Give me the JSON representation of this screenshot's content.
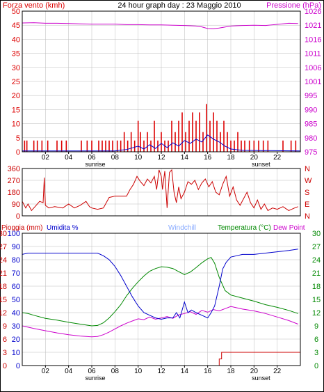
{
  "header": {
    "left_label": "Forza vento (kmh)",
    "title": "24 hour graph day : 23 Maggio 2010",
    "right_label": "Pressione (hPa)"
  },
  "colors": {
    "wind": "#dd0000",
    "gust": "#dd0000",
    "avg_wind": "#0000cc",
    "pressure": "#cc00cc",
    "direction": "#cc0000",
    "rain": "#cc0000",
    "humidity": "#0000cc",
    "windchill": "#88aaff",
    "temperature": "#008800",
    "dewpoint": "#cc00cc",
    "frame": "#000000",
    "grid": "#bbbbbb"
  },
  "x_axis": {
    "tick_labels": [
      "02",
      "04",
      "06",
      "08",
      "10",
      "12",
      "14",
      "16",
      "18",
      "20",
      "22"
    ],
    "tick_hours": [
      2,
      4,
      6,
      8,
      10,
      12,
      14,
      16,
      18,
      20,
      22
    ],
    "sunrise_label": "sunrise",
    "sunset_label": "sunset",
    "sunrise_hour": 6.3,
    "sunset_hour": 20.6
  },
  "chart_data": [
    {
      "type": "line",
      "name_key": "wind_pressure",
      "title": "24 hour graph day : 23 Maggio 2010",
      "ylabel_left": "Forza vento (kmh)",
      "ylabel_right": "Pressione (hPa)",
      "ylim_left": [
        0,
        50
      ],
      "ylim_right": [
        975,
        1026
      ],
      "yticks_left": [
        "0",
        "5",
        "10",
        "15",
        "20",
        "25",
        "30",
        "35",
        "40",
        "45",
        "50"
      ],
      "yticks_right": [
        "975",
        "980",
        "985",
        "990",
        "995",
        "1001",
        "1006",
        "1011",
        "1016",
        "1021",
        "1026"
      ],
      "grid": true,
      "series": [
        {
          "key": "gust",
          "style": "bars",
          "x": [
            0.2,
            0.4,
            1.0,
            1.3,
            1.7,
            2.2,
            3.0,
            3.4,
            3.8,
            5.1,
            5.6,
            6.0,
            6.6,
            6.9,
            7.2,
            7.5,
            7.8,
            8.2,
            8.5,
            8.8,
            9.1,
            9.4,
            9.7,
            10.0,
            10.2,
            10.5,
            10.8,
            11.1,
            11.4,
            11.7,
            12.0,
            12.3,
            12.6,
            12.9,
            13.2,
            13.5,
            13.8,
            14.1,
            14.4,
            14.7,
            15.0,
            15.3,
            15.6,
            15.9,
            16.2,
            16.5,
            16.8,
            17.1,
            17.4,
            17.7,
            18.0,
            18.3,
            18.6,
            18.9,
            19.2,
            19.6,
            20.0,
            20.4,
            20.8,
            21.2,
            22.5,
            23.2,
            23.6
          ],
          "values": [
            4,
            4,
            4,
            4,
            4,
            4,
            4,
            4,
            4,
            4,
            4,
            4,
            4,
            4,
            4,
            4,
            4,
            4,
            4,
            7,
            4,
            7,
            4,
            11,
            7,
            4,
            7,
            4,
            11,
            4,
            7,
            4,
            4,
            11,
            7,
            11,
            14,
            7,
            11,
            14,
            11,
            14,
            7,
            17,
            11,
            14,
            11,
            7,
            11,
            7,
            4,
            4,
            7,
            4,
            4,
            4,
            4,
            4,
            4,
            4,
            4,
            4,
            4
          ]
        },
        {
          "key": "avg_wind",
          "style": "line",
          "x": [
            0,
            8,
            9,
            10,
            10.5,
            11,
            11.5,
            12,
            12.5,
            13,
            13.5,
            14,
            14.5,
            15,
            15.5,
            16,
            16.5,
            17,
            17.5,
            18,
            19,
            24
          ],
          "values": [
            0.3,
            0.3,
            0.8,
            2.0,
            1.0,
            2.5,
            1.2,
            3.0,
            1.5,
            3.2,
            2.0,
            4.0,
            3.0,
            4.5,
            3.5,
            6.0,
            4.5,
            3.5,
            2.0,
            1.0,
            0.5,
            0.3
          ]
        },
        {
          "key": "pressure",
          "style": "line",
          "axis": "right",
          "x": [
            0,
            1,
            2,
            3,
            4,
            5,
            6,
            7,
            8,
            9,
            10,
            11,
            12,
            13,
            14,
            15,
            15.5,
            16,
            16.5,
            17,
            18,
            19,
            20,
            21,
            22,
            23,
            23.8
          ],
          "values": [
            1021.7,
            1021.8,
            1021.6,
            1021.6,
            1021.5,
            1021.4,
            1021.3,
            1021.3,
            1021.3,
            1021.1,
            1021.1,
            1021.0,
            1021.0,
            1020.9,
            1020.8,
            1020.6,
            1020.3,
            1019.7,
            1019.6,
            1019.9,
            1020.6,
            1020.8,
            1020.9,
            1020.8,
            1021.2,
            1021.6,
            1021.5
          ]
        }
      ]
    },
    {
      "type": "line",
      "name_key": "direction",
      "ylim": [
        0,
        360
      ],
      "yticks_left": [
        "0",
        "90",
        "180",
        "270",
        "360"
      ],
      "yticks_right": [
        "N",
        "E",
        "S",
        "W",
        "N"
      ],
      "grid": true,
      "series": [
        {
          "key": "direction",
          "x": [
            0,
            0.3,
            0.5,
            0.8,
            1.2,
            1.5,
            1.8,
            1.9,
            2.0,
            2.3,
            2.8,
            3.5,
            4.0,
            4.5,
            5.0,
            5.5,
            5.8,
            6.0,
            6.5,
            7.0,
            7.5,
            8.0,
            8.5,
            9.0,
            9.3,
            9.6,
            9.9,
            10.2,
            10.5,
            10.8,
            11.1,
            11.4,
            11.6,
            11.8,
            12.0,
            12.1,
            12.3,
            12.5,
            12.7,
            12.9,
            13.1,
            13.3,
            13.5,
            13.7,
            14.0,
            14.3,
            14.6,
            14.9,
            15.2,
            15.5,
            15.8,
            16.1,
            16.4,
            16.7,
            17.0,
            17.3,
            17.6,
            17.9,
            18.2,
            18.5,
            18.8,
            19.1,
            19.4,
            19.7,
            20.0,
            20.3,
            20.6,
            20.9,
            21.2,
            21.6,
            22.0,
            22.5,
            23.0,
            23.5,
            23.8
          ],
          "values": [
            110,
            60,
            90,
            40,
            80,
            110,
            100,
            290,
            80,
            60,
            70,
            60,
            90,
            60,
            80,
            110,
            70,
            60,
            50,
            60,
            140,
            150,
            150,
            150,
            200,
            240,
            300,
            260,
            230,
            280,
            250,
            300,
            200,
            350,
            300,
            200,
            340,
            60,
            330,
            350,
            180,
            100,
            220,
            130,
            180,
            260,
            240,
            270,
            200,
            250,
            280,
            220,
            260,
            180,
            160,
            240,
            300,
            150,
            220,
            120,
            80,
            130,
            180,
            100,
            60,
            120,
            50,
            90,
            40,
            60,
            50,
            70,
            40,
            60,
            70
          ]
        }
      ]
    },
    {
      "type": "line",
      "name_key": "rain_hum_temp",
      "labels": {
        "rain": "Pioggia (mm)",
        "humidity": "Umidita %",
        "windchill": "Windchill",
        "temperature": "Temperatura (°C)",
        "dewpoint": "Dew Point"
      },
      "ylim_left": [
        0,
        100
      ],
      "ylim_right": [
        0,
        30
      ],
      "yticks_rain": [
        "0",
        "3",
        "6",
        "9",
        "12",
        "15",
        "18",
        "21",
        "24",
        "27",
        "30"
      ],
      "yticks_hum": [
        "0",
        "10",
        "20",
        "30",
        "40",
        "50",
        "60",
        "70",
        "80",
        "90",
        "100"
      ],
      "yticks_right": [
        "0",
        "3",
        "6",
        "9",
        "12",
        "15",
        "18",
        "21",
        "24",
        "27",
        "30"
      ],
      "grid": true,
      "series": [
        {
          "key": "humidity",
          "axis": "left",
          "x": [
            0,
            0.5,
            1,
            2,
            3,
            4,
            5,
            6,
            6.5,
            7,
            7.5,
            8,
            8.5,
            9,
            9.5,
            10,
            10.5,
            11,
            11.5,
            12,
            12.5,
            13,
            13.3,
            13.6,
            14,
            14.3,
            14.6,
            15,
            15.5,
            16,
            16.3,
            16.6,
            17,
            17.3,
            17.6,
            18,
            18.5,
            19,
            20,
            21,
            22,
            23,
            23.8
          ],
          "values": [
            84,
            85,
            85,
            85,
            85,
            85,
            85,
            85,
            85,
            83,
            80,
            75,
            68,
            60,
            52,
            45,
            40,
            38,
            36,
            35,
            36,
            36,
            40,
            36,
            48,
            40,
            42,
            40,
            38,
            36,
            40,
            45,
            60,
            73,
            78,
            82,
            83,
            84,
            84,
            85,
            86,
            87,
            88
          ]
        },
        {
          "key": "temperature",
          "axis": "right",
          "x": [
            0,
            0.5,
            1,
            2,
            3,
            4,
            5,
            6,
            6.5,
            7,
            7.5,
            8,
            8.5,
            9,
            9.5,
            10,
            10.5,
            11,
            11.5,
            12,
            12.5,
            13,
            13.5,
            14,
            14.5,
            15,
            15.5,
            16,
            16.3,
            16.6,
            17,
            17.5,
            18,
            19,
            20,
            21,
            22,
            23,
            23.8
          ],
          "values": [
            12.0,
            11.8,
            11.4,
            10.7,
            10.3,
            9.8,
            9.4,
            9.0,
            9.1,
            9.7,
            10.8,
            12.2,
            13.8,
            15.8,
            17.5,
            19.0,
            20.3,
            21.4,
            22.0,
            22.4,
            22.3,
            22.0,
            21.3,
            20.6,
            21.2,
            22.2,
            23.3,
            24.2,
            24.5,
            23.2,
            20.0,
            17.0,
            16.0,
            15.3,
            14.6,
            13.8,
            13.2,
            12.5,
            11.8
          ]
        },
        {
          "key": "dewpoint",
          "axis": "right",
          "x": [
            0,
            0.5,
            1,
            2,
            3,
            4,
            5,
            6,
            6.5,
            7,
            7.5,
            8,
            8.5,
            9,
            9.5,
            10,
            10.5,
            11,
            11.5,
            12,
            12.5,
            13,
            13.5,
            14,
            14.5,
            15,
            15.5,
            16,
            16.5,
            17,
            17.5,
            18,
            18.5,
            19,
            20,
            21,
            22,
            23,
            23.8
          ],
          "values": [
            9.0,
            8.7,
            8.4,
            7.9,
            7.4,
            7.0,
            6.7,
            6.5,
            6.6,
            7.0,
            7.6,
            8.3,
            9.0,
            9.6,
            10.1,
            10.6,
            10.4,
            11.0,
            10.5,
            10.8,
            11.1,
            10.7,
            11.5,
            11.8,
            12.2,
            11.6,
            12.5,
            12.1,
            12.7,
            12.4,
            12.9,
            13.4,
            13.1,
            12.8,
            12.4,
            11.8,
            11.0,
            10.2,
            9.4
          ]
        },
        {
          "key": "rain",
          "axis": "rain",
          "style": "step",
          "x": [
            0,
            17.0,
            17.0,
            17.2,
            17.2,
            24
          ],
          "values": [
            0,
            0,
            1.5,
            1.5,
            3,
            3
          ]
        }
      ]
    }
  ]
}
